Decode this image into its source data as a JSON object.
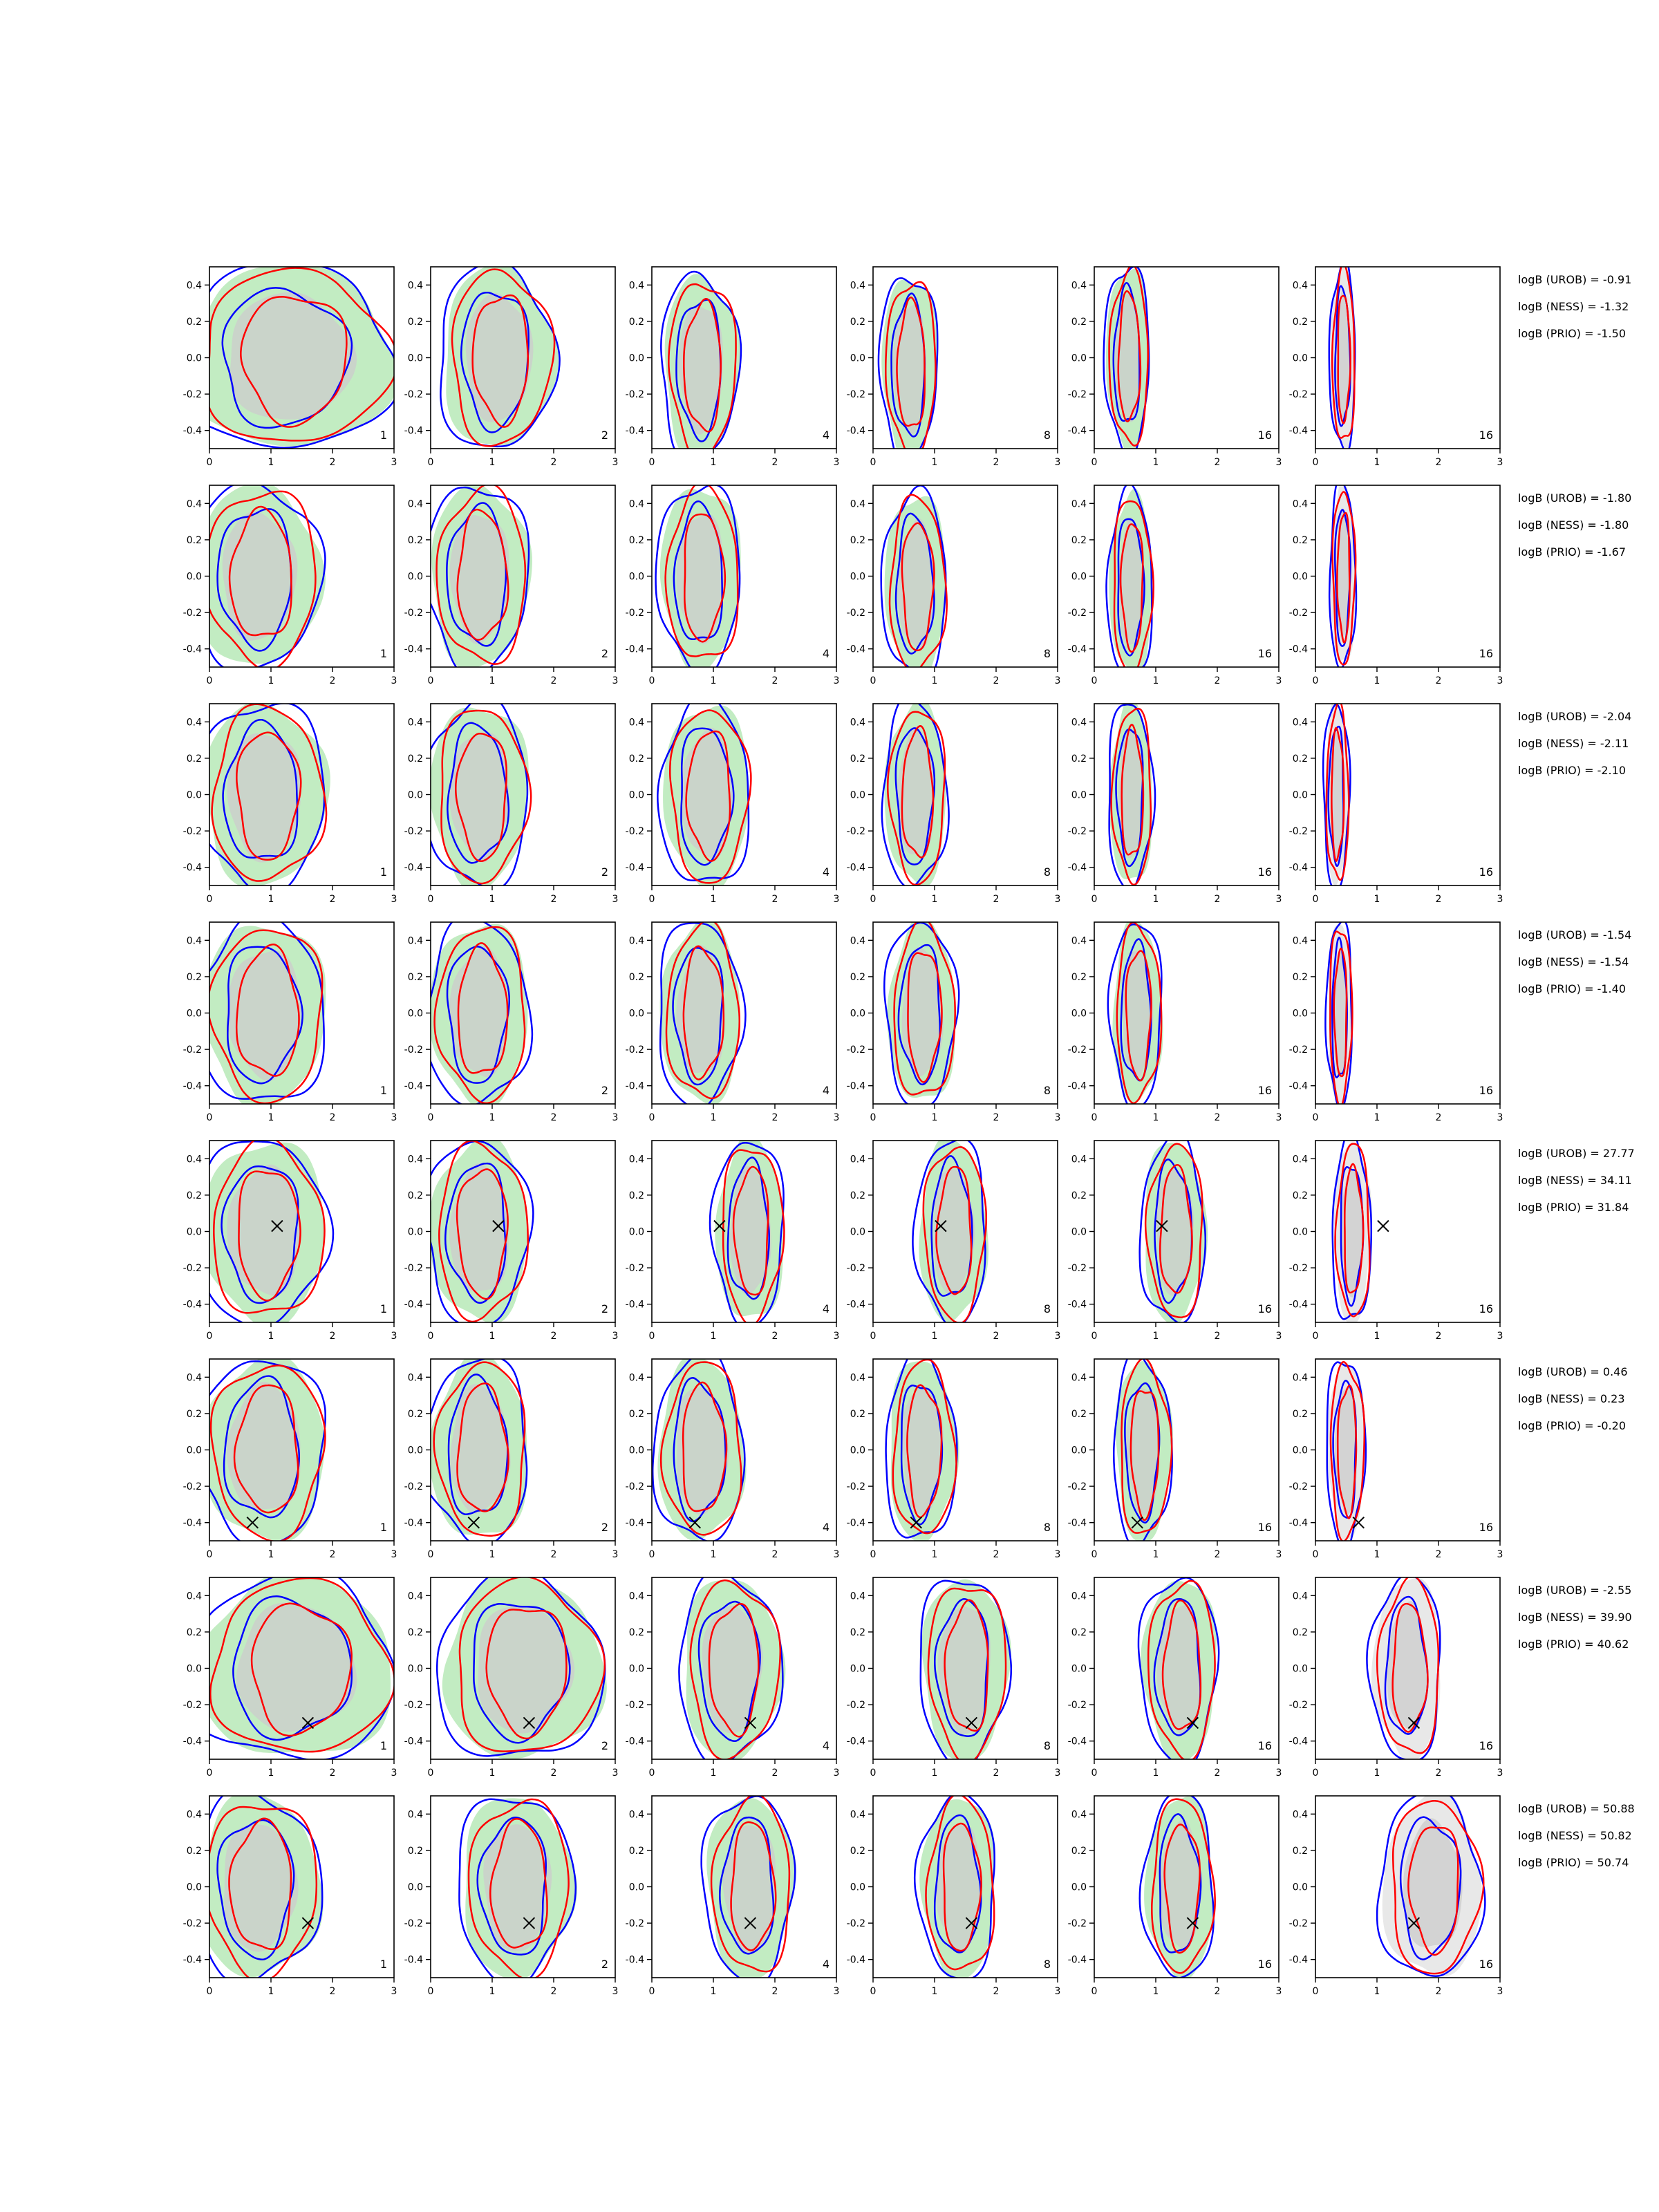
{
  "chart_data": {
    "type": "contour",
    "grid": {
      "rows": 8,
      "cols": 6
    },
    "xlim": [
      0,
      3
    ],
    "ylim": [
      -0.5,
      0.5
    ],
    "x_ticks": [
      "0",
      "1",
      "2",
      "3"
    ],
    "y_ticks": [
      "-0.4",
      "-0.2",
      "0.0",
      "0.2",
      "0.4"
    ],
    "y_tick_values": [
      -0.4,
      -0.2,
      0.0,
      0.2,
      0.4
    ],
    "x_tick_values": [
      0,
      1,
      2,
      3
    ],
    "column_labels": [
      "1",
      "2",
      "4",
      "8",
      "16",
      "16"
    ],
    "colors": {
      "green_fill": "#c2ecc2",
      "grey_fill": "#cccccc",
      "blue": "#0000ff",
      "red": "#ff0000"
    },
    "rows": [
      {
        "logB": [
          "logB (UROB) = -0.91",
          "logB (NESS) = -1.32",
          "logB (PRIO) = -1.50"
        ],
        "blobs": [
          [
            1.3,
            0.0,
            1.7
          ],
          [
            1.1,
            0.0,
            0.9
          ],
          [
            0.8,
            -0.05,
            0.6
          ],
          [
            0.6,
            -0.05,
            0.45
          ],
          [
            0.55,
            0.0,
            0.35
          ],
          [
            0.45,
            0.0,
            0.2
          ]
        ]
      },
      {
        "logB": [
          "logB (UROB) = -1.80",
          "logB (NESS) = -1.80",
          "logB (PRIO) = -1.67"
        ],
        "blobs": [
          [
            0.8,
            0.0,
            1.0
          ],
          [
            0.8,
            0.0,
            0.8
          ],
          [
            0.8,
            0.0,
            0.65
          ],
          [
            0.7,
            -0.05,
            0.5
          ],
          [
            0.6,
            -0.05,
            0.35
          ],
          [
            0.45,
            0.0,
            0.2
          ]
        ]
      },
      {
        "logB": [
          "logB (UROB) = -2.04",
          "logB (NESS) = -2.11",
          "logB (PRIO) = -2.10"
        ],
        "blobs": [
          [
            0.9,
            0.0,
            1.0
          ],
          [
            0.8,
            0.0,
            0.8
          ],
          [
            0.9,
            0.0,
            0.7
          ],
          [
            0.7,
            0.0,
            0.5
          ],
          [
            0.6,
            0.0,
            0.35
          ],
          [
            0.35,
            0.0,
            0.2
          ]
        ]
      },
      {
        "logB": [
          "logB (UROB) = -1.54",
          "logB (NESS) = -1.54",
          "logB (PRIO) = -1.40"
        ],
        "blobs": [
          [
            0.9,
            0.0,
            1.0
          ],
          [
            0.8,
            0.0,
            0.8
          ],
          [
            0.8,
            0.0,
            0.65
          ],
          [
            0.8,
            0.0,
            0.55
          ],
          [
            0.7,
            0.0,
            0.4
          ],
          [
            0.4,
            0.0,
            0.2
          ]
        ]
      },
      {
        "logB": [
          "logB (UROB) = 27.77",
          "logB (NESS) = 34.11",
          "logB (PRIO) = 31.84"
        ],
        "blobs": [
          [
            0.9,
            0.0,
            1.0
          ],
          [
            0.8,
            0.0,
            0.8
          ],
          [
            1.6,
            0.0,
            0.55
          ],
          [
            1.3,
            0.0,
            0.55
          ],
          [
            1.3,
            0.0,
            0.5
          ],
          [
            0.6,
            0.0,
            0.3
          ]
        ],
        "marker": [
          1.1,
          0.03
        ]
      },
      {
        "logB": [
          "logB (UROB) = 0.46",
          "logB (NESS) = 0.23",
          "logB (PRIO) = -0.20"
        ],
        "blobs": [
          [
            0.9,
            0.0,
            1.0
          ],
          [
            0.8,
            0.0,
            0.8
          ],
          [
            0.8,
            0.0,
            0.7
          ],
          [
            0.8,
            0.0,
            0.55
          ],
          [
            0.8,
            0.0,
            0.45
          ],
          [
            0.5,
            0.0,
            0.3
          ]
        ],
        "marker": [
          0.7,
          -0.4
        ]
      },
      {
        "logB": [
          "logB (UROB) = -2.55",
          "logB (NESS) = 39.90",
          "logB (PRIO) = 40.62"
        ],
        "blobs": [
          [
            1.4,
            0.0,
            1.6
          ],
          [
            1.5,
            0.0,
            1.3
          ],
          [
            1.3,
            0.0,
            0.8
          ],
          [
            1.5,
            0.0,
            0.7
          ],
          [
            1.4,
            0.0,
            0.6
          ],
          [
            1.5,
            0.0,
            0.55
          ]
        ],
        "marker": [
          1.6,
          -0.3
        ]
      },
      {
        "logB": [
          "logB (UROB) = 50.88",
          "logB (NESS) = 50.82",
          "logB (PRIO) = 50.74"
        ],
        "blobs": [
          [
            0.8,
            0.0,
            1.0
          ],
          [
            1.4,
            0.0,
            0.9
          ],
          [
            1.6,
            0.0,
            0.7
          ],
          [
            1.4,
            0.0,
            0.6
          ],
          [
            1.4,
            0.0,
            0.55
          ],
          [
            1.9,
            0.0,
            0.8
          ]
        ],
        "marker": [
          1.6,
          -0.2
        ]
      }
    ]
  }
}
